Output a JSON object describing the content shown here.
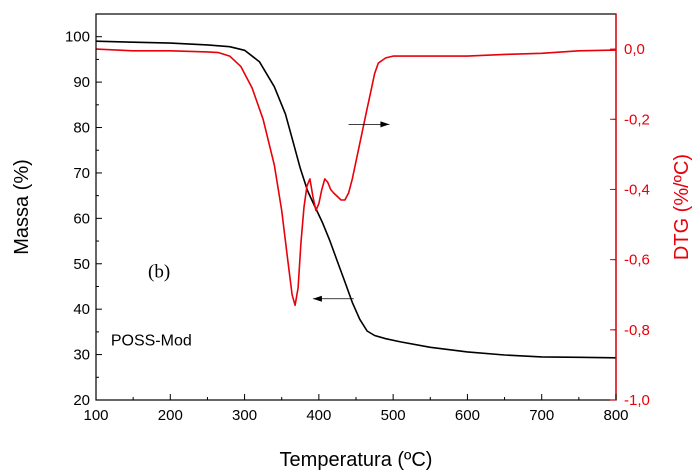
{
  "chart_data": {
    "type": "line",
    "xlabel": "Temperatura (ºC)",
    "ylabel": "Massa (%)",
    "y2label": "DTG (%/ºC)",
    "xlim": [
      100,
      800
    ],
    "ylim": [
      20,
      105
    ],
    "y2lim": [
      -1.0,
      0.1
    ],
    "x_ticks": [
      100,
      200,
      300,
      400,
      500,
      600,
      700,
      800
    ],
    "y_ticks": [
      20,
      30,
      40,
      50,
      60,
      70,
      80,
      90,
      100
    ],
    "y2_ticks": [
      "0,0",
      "-0,2",
      "-0,4",
      "-0,6",
      "-0,8",
      "-1,0"
    ],
    "y2_tick_values": [
      0.0,
      -0.2,
      -0.4,
      -0.6,
      -0.8,
      -1.0
    ],
    "grid": false,
    "colors": {
      "mass": "#000000",
      "dtg": "#e8000b"
    },
    "series": [
      {
        "axis": "left",
        "x": [
          100,
          150,
          200,
          250,
          280,
          300,
          320,
          340,
          355,
          365,
          375,
          385,
          395,
          405,
          415,
          425,
          435,
          445,
          455,
          465,
          475,
          490,
          510,
          550,
          600,
          650,
          700,
          750,
          800
        ],
        "values": [
          99.0,
          98.8,
          98.6,
          98.2,
          97.8,
          97.0,
          94.5,
          89.0,
          83.0,
          77.0,
          71.0,
          66.0,
          62.5,
          59.0,
          55.0,
          50.5,
          46.0,
          41.5,
          37.8,
          35.2,
          34.2,
          33.5,
          32.8,
          31.6,
          30.6,
          29.9,
          29.5,
          29.4,
          29.3
        ]
      },
      {
        "axis": "right",
        "x": [
          100,
          150,
          200,
          250,
          265,
          280,
          295,
          310,
          325,
          340,
          350,
          358,
          364,
          368,
          372,
          376,
          380,
          384,
          388,
          392,
          396,
          400,
          404,
          408,
          412,
          416,
          420,
          425,
          430,
          435,
          440,
          445,
          450,
          455,
          460,
          465,
          470,
          475,
          480,
          490,
          500,
          550,
          600,
          650,
          700,
          750,
          800
        ],
        "values": [
          0.0,
          -0.005,
          -0.005,
          -0.008,
          -0.01,
          -0.02,
          -0.05,
          -0.11,
          -0.2,
          -0.33,
          -0.46,
          -0.6,
          -0.7,
          -0.73,
          -0.68,
          -0.55,
          -0.45,
          -0.39,
          -0.37,
          -0.42,
          -0.46,
          -0.44,
          -0.4,
          -0.37,
          -0.38,
          -0.4,
          -0.41,
          -0.42,
          -0.43,
          -0.43,
          -0.41,
          -0.37,
          -0.32,
          -0.27,
          -0.22,
          -0.17,
          -0.12,
          -0.07,
          -0.04,
          -0.025,
          -0.02,
          -0.02,
          -0.02,
          -0.015,
          -0.012,
          -0.005,
          -0.003
        ]
      }
    ],
    "annotations": [
      {
        "text": "(b)",
        "x": 170,
        "y": 47
      },
      {
        "text": "POSS-Mod",
        "x": 120,
        "y": 32
      }
    ],
    "arrows": [
      {
        "from": [
          440,
          80.7
        ],
        "to": [
          495,
          80.7
        ]
      },
      {
        "from": [
          447,
          42.3
        ],
        "to": [
          392,
          42.3
        ]
      }
    ]
  }
}
